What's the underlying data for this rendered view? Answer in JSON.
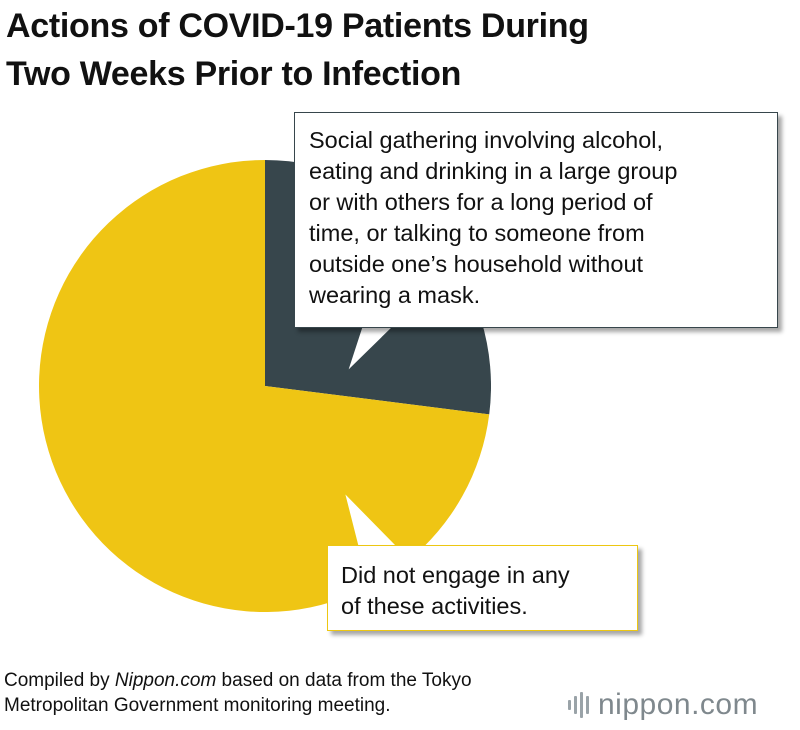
{
  "title": {
    "line1": "Actions of COVID-19 Patients During",
    "line2": "Two Weeks Prior to Infection"
  },
  "chart_data": {
    "type": "pie",
    "title": "Actions of COVID-19 Patients During Two Weeks Prior to Infection",
    "slices": [
      {
        "label": "Social gathering involving alcohol, eating and drinking in a large group or with others for a long period of time, or talking to someone from outside one’s household without wearing a mask.",
        "value": 27,
        "color": "#37464c"
      },
      {
        "label": "Did not engage in any of these activities.",
        "value": 73,
        "color": "#efc514"
      }
    ],
    "legend": "callouts"
  },
  "callouts": {
    "dark_lines": [
      "Social gathering involving alcohol,",
      "eating and drinking in a large group",
      "or with others for a long period of",
      "time, or talking to someone from",
      "outside one’s household without",
      "wearing a mask."
    ],
    "yellow_lines": [
      "Did not engage in any",
      "of these activities."
    ]
  },
  "source": {
    "prefix": "Compiled by ",
    "publisher": "Nippon.com",
    "suffix": " based on data from the Tokyo",
    "line2": "Metropolitan Government monitoring meeting."
  },
  "logo": {
    "name": "nippon",
    "domain": ".com",
    "brand_color": "#7f888d"
  }
}
